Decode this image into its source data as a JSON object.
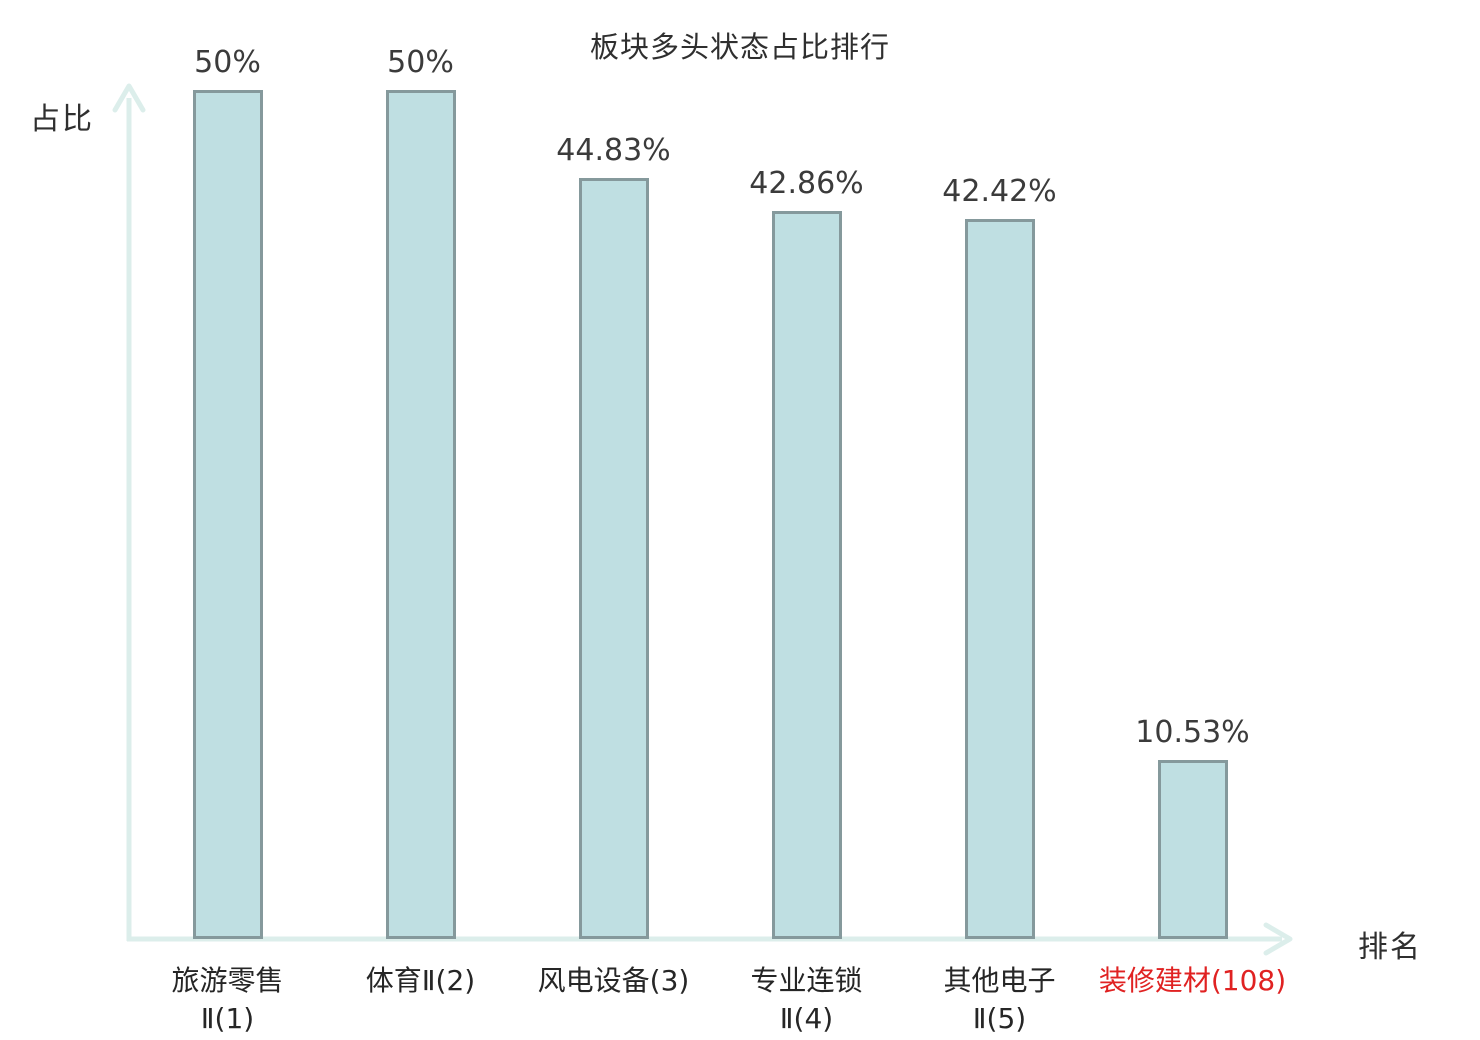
{
  "title": "板块多头状态占比排行",
  "axes": {
    "y_label": "占比",
    "x_label": "排名"
  },
  "colors": {
    "bar_fill": "#bfdfe2",
    "bar_border": "#85999c",
    "axis": "#dceeeb",
    "text": "#3b3b3b",
    "highlight": "#e02222"
  },
  "chart_data": {
    "type": "bar",
    "title": "板块多头状态占比排行",
    "xlabel": "排名",
    "ylabel": "占比",
    "categories": [
      "旅游零售Ⅱ(1)",
      "体育Ⅱ(2)",
      "风电设备(3)",
      "专业连锁Ⅱ(4)",
      "其他电子Ⅱ(5)",
      "装修建材(108)"
    ],
    "category_lines": [
      [
        "旅游零售",
        "Ⅱ(1)"
      ],
      [
        "体育Ⅱ(2)"
      ],
      [
        "风电设备(3)"
      ],
      [
        "专业连锁",
        "Ⅱ(4)"
      ],
      [
        "其他电子",
        "Ⅱ(5)"
      ],
      [
        "装修建材(108)"
      ]
    ],
    "values": [
      50,
      50,
      44.83,
      42.86,
      42.42,
      10.53
    ],
    "value_labels": [
      "50%",
      "50%",
      "44.83%",
      "42.86%",
      "42.42%",
      "10.53%"
    ],
    "highlighted_category_index": 5,
    "unit": "%",
    "ylim": [
      0,
      52
    ],
    "grid": false,
    "legend_position": "none"
  }
}
